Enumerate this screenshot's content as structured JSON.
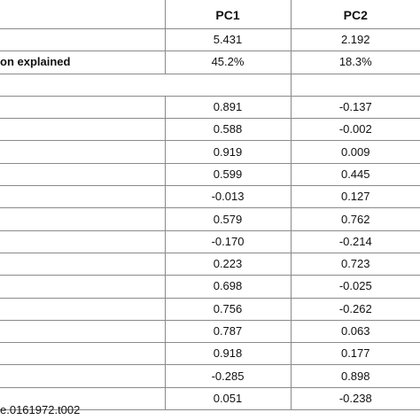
{
  "table": {
    "header": {
      "pc1": "PC1",
      "pc2": "PC2"
    },
    "eigen_row": {
      "pc1": "5.431",
      "pc2": "2.192"
    },
    "variance_row": {
      "label": "on explained",
      "pc1": "45.2%",
      "pc2": "18.3%"
    },
    "rows": [
      {
        "pc1": "0.891",
        "pc2": "-0.137"
      },
      {
        "pc1": "0.588",
        "pc2": "-0.002"
      },
      {
        "pc1": "0.919",
        "pc2": "0.009"
      },
      {
        "pc1": "0.599",
        "pc2": "0.445"
      },
      {
        "pc1": "-0.013",
        "pc2": "0.127"
      },
      {
        "pc1": "0.579",
        "pc2": "0.762"
      },
      {
        "pc1": "-0.170",
        "pc2": "-0.214"
      },
      {
        "pc1": "0.223",
        "pc2": "0.723"
      },
      {
        "pc1": "0.698",
        "pc2": "-0.025"
      },
      {
        "pc1": "0.756",
        "pc2": "-0.262"
      },
      {
        "pc1": "0.787",
        "pc2": "0.063"
      },
      {
        "pc1": "0.918",
        "pc2": "0.177"
      },
      {
        "pc1": "-0.285",
        "pc2": "0.898"
      },
      {
        "pc1": "0.051",
        "pc2": "-0.238"
      }
    ]
  },
  "footer": {
    "doi_fragment": "e.0161972.t002"
  }
}
